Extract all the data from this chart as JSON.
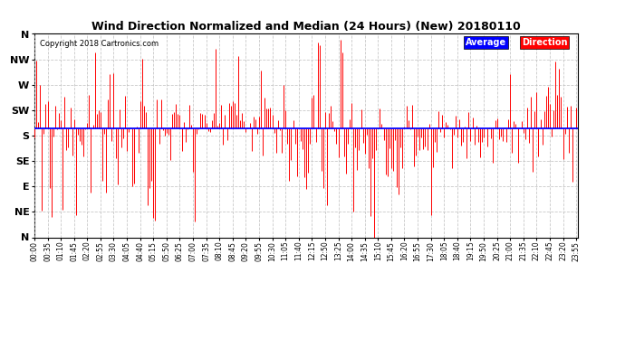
{
  "title": "Wind Direction Normalized and Median (24 Hours) (New) 20180110",
  "copyright": "Copyright 2018 Cartronics.com",
  "y_labels": [
    "N",
    "NW",
    "W",
    "SW",
    "S",
    "SE",
    "E",
    "NE",
    "N"
  ],
  "y_ticks": [
    360,
    315,
    270,
    225,
    180,
    135,
    90,
    45,
    0
  ],
  "y_min": 0,
  "y_max": 360,
  "average_value": 192,
  "bar_color": "#ff0000",
  "avg_line_color": "#0000ff",
  "grid_color": "#bbbbbb",
  "background_color": "#ffffff",
  "num_points": 288,
  "legend_avg_label": "Average",
  "legend_dir_label": "Direction",
  "legend_avg_color": "#0000ff",
  "legend_dir_color": "#ff0000"
}
